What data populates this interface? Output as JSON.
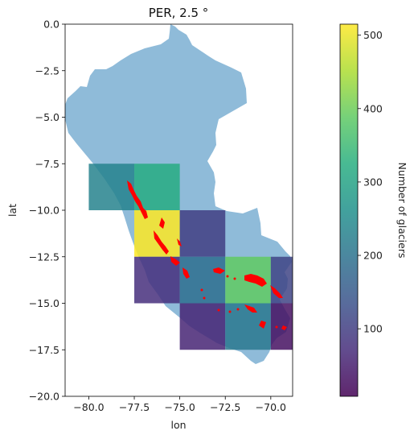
{
  "chart_data": {
    "type": "heatmap",
    "title": "PER, 2.5 °",
    "xlabel": "lon",
    "ylabel": "lat",
    "xlim": [
      -81.3,
      -68.8
    ],
    "ylim": [
      -20.0,
      0.0
    ],
    "xticks": [
      -80.0,
      -77.5,
      -75.0,
      -72.5,
      -70.0
    ],
    "xtick_labels": [
      "−80.0",
      "−77.5",
      "−75.0",
      "−72.5",
      "−70.0"
    ],
    "yticks": [
      0.0,
      -2.5,
      -5.0,
      -7.5,
      -10.0,
      -12.5,
      -15.0,
      -17.5,
      -20.0
    ],
    "ytick_labels": [
      "0.0",
      "−2.5",
      "−5.0",
      "−7.5",
      "−10.0",
      "−12.5",
      "−15.0",
      "−17.5",
      "−20.0"
    ],
    "grid": false,
    "cell_size_deg": 2.5,
    "cells": [
      {
        "lon": [
          -80.0,
          -77.5
        ],
        "lat": [
          -10.0,
          -7.5
        ],
        "value": 230
      },
      {
        "lon": [
          -77.5,
          -75.0
        ],
        "lat": [
          -10.0,
          -7.5
        ],
        "value": 320
      },
      {
        "lon": [
          -77.5,
          -75.0
        ],
        "lat": [
          -12.5,
          -10.0
        ],
        "value": 515
      },
      {
        "lon": [
          -75.0,
          -72.5
        ],
        "lat": [
          -12.5,
          -10.0
        ],
        "value": 100
      },
      {
        "lon": [
          -77.5,
          -75.0
        ],
        "lat": [
          -15.0,
          -12.5
        ],
        "value": 75
      },
      {
        "lon": [
          -75.0,
          -72.5
        ],
        "lat": [
          -15.0,
          -12.5
        ],
        "value": 190
      },
      {
        "lon": [
          -72.5,
          -70.0
        ],
        "lat": [
          -15.0,
          -12.5
        ],
        "value": 390
      },
      {
        "lon": [
          -70.0,
          -68.8
        ],
        "lat": [
          -15.0,
          -12.5
        ],
        "value": 110
      },
      {
        "lon": [
          -75.0,
          -72.5
        ],
        "lat": [
          -17.5,
          -15.0
        ],
        "value": 60
      },
      {
        "lon": [
          -72.5,
          -70.0
        ],
        "lat": [
          -17.5,
          -15.0
        ],
        "value": 210
      },
      {
        "lon": [
          -70.0,
          -68.8
        ],
        "lat": [
          -17.5,
          -15.0
        ],
        "value": 30
      }
    ],
    "colorbar": {
      "label": "Number of glaciers",
      "min": 8,
      "max": 515,
      "ticks": [
        100,
        200,
        300,
        400,
        500
      ],
      "tick_labels": [
        "100",
        "200",
        "300",
        "400",
        "500"
      ],
      "colormap": "viridis"
    },
    "country_fill_color": "#8fbbd9",
    "glacier_color": "#ff0000",
    "cell_alpha": 0.85
  }
}
